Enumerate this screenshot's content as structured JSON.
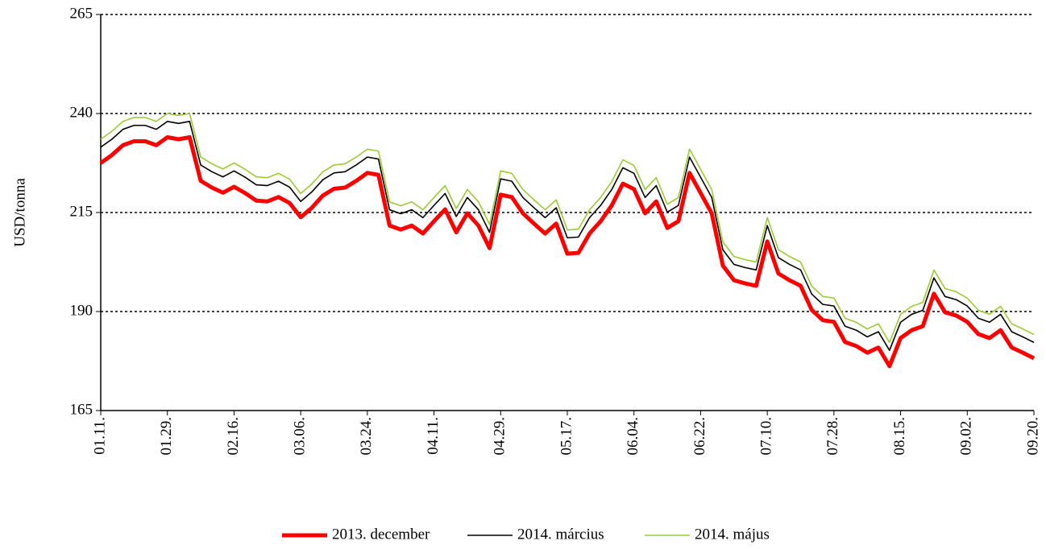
{
  "chart_data": {
    "type": "line",
    "y_label": "USD/tonna",
    "categories": [
      "01.11.",
      null,
      null,
      null,
      null,
      null,
      "01.29.",
      null,
      null,
      null,
      null,
      null,
      "02.16.",
      null,
      null,
      null,
      null,
      null,
      "03.06.",
      null,
      null,
      null,
      null,
      null,
      "03.24.",
      null,
      null,
      null,
      null,
      null,
      "04.11.",
      null,
      null,
      null,
      null,
      null,
      "04.29.",
      null,
      null,
      null,
      null,
      null,
      "05.17.",
      null,
      null,
      null,
      null,
      null,
      "06.04.",
      null,
      null,
      null,
      null,
      null,
      "06.22.",
      null,
      null,
      null,
      null,
      null,
      "07.10.",
      null,
      null,
      null,
      null,
      null,
      "07.28.",
      null,
      null,
      null,
      null,
      null,
      "08.15.",
      null,
      null,
      null,
      null,
      null,
      "09.02.",
      null,
      null,
      null,
      null,
      null,
      "09.20."
    ],
    "series": [
      {
        "name": "2013. december",
        "color": "#ff0000",
        "width": 5,
        "values": [
          227.5,
          229.5,
          232,
          233,
          233,
          232,
          234,
          233.5,
          234,
          223,
          221.3,
          220,
          221.5,
          219.9,
          218,
          217.8,
          218.9,
          217.4,
          213.8,
          216.2,
          219.3,
          221,
          221.3,
          223,
          225,
          224.5,
          211.7,
          210.7,
          211.7,
          209.7,
          212.8,
          215.8,
          210,
          214.8,
          211.7,
          206,
          219.5,
          218.9,
          214.8,
          212.2,
          209.7,
          212.2,
          204.6,
          204.8,
          209.7,
          212.8,
          216.8,
          222.3,
          220.9,
          214.8,
          217.8,
          211.1,
          212.8,
          225,
          219.9,
          214.8,
          201.6,
          197.9,
          197.1,
          196.5,
          207.7,
          199.6,
          197.9,
          196.5,
          190.4,
          187.8,
          187.4,
          182.3,
          181.3,
          179.6,
          180.9,
          176.2,
          183.3,
          185.3,
          186.3,
          194.5,
          189.8,
          189,
          187.4,
          184.3,
          183.3,
          185.3,
          180.9,
          179.6,
          178.2
        ]
      },
      {
        "name": "2014. március",
        "color": "#000000",
        "width": 1.6,
        "values": [
          231.5,
          233.5,
          236,
          237,
          237,
          236,
          238,
          237.5,
          238,
          227,
          225.3,
          224,
          225.5,
          223.9,
          222,
          221.8,
          222.9,
          221.4,
          217.8,
          220.2,
          223.3,
          225,
          225.3,
          227,
          229,
          228.5,
          215.7,
          214.7,
          215.7,
          213.7,
          216.8,
          219.8,
          214,
          218.8,
          215.7,
          210,
          223.5,
          222.9,
          218.8,
          216.2,
          213.7,
          216.2,
          208.6,
          208.8,
          213.7,
          216.8,
          220.8,
          226.3,
          224.9,
          218.8,
          221.8,
          215.1,
          216.8,
          229,
          223.9,
          218.8,
          205.6,
          201.9,
          201.1,
          200.5,
          211.7,
          203.6,
          201.9,
          200.5,
          194.4,
          191.8,
          191.4,
          186.3,
          185.3,
          183.6,
          184.9,
          180.2,
          187.3,
          189.3,
          190.3,
          198.5,
          193.8,
          193,
          191.4,
          188.3,
          187.3,
          189.3,
          184.9,
          183.6,
          182.2
        ]
      },
      {
        "name": "2014. május",
        "color": "#9acd32",
        "width": 1.6,
        "values": [
          233.5,
          235.5,
          238,
          239,
          239,
          238,
          240,
          239.5,
          240,
          229,
          227.3,
          226,
          227.5,
          225.9,
          224,
          223.8,
          224.9,
          223.4,
          219.8,
          222.2,
          225.3,
          227,
          227.3,
          229,
          231,
          230.5,
          217.7,
          216.7,
          217.7,
          215.7,
          218.8,
          221.8,
          216,
          220.8,
          217.7,
          212,
          225.5,
          224.9,
          220.8,
          218.2,
          215.7,
          218.2,
          210.6,
          210.8,
          215.7,
          218.8,
          222.8,
          228.3,
          226.9,
          220.8,
          223.8,
          217.1,
          218.8,
          231,
          225.9,
          220.8,
          207.6,
          203.9,
          203.1,
          202.5,
          213.7,
          205.6,
          203.9,
          202.5,
          196.4,
          193.8,
          193.4,
          188.3,
          187.3,
          185.6,
          186.9,
          182.2,
          189.3,
          191.3,
          192.3,
          200.5,
          195.8,
          195,
          193.4,
          190.3,
          189.3,
          191.3,
          186.9,
          185.6,
          184.2
        ]
      }
    ],
    "ylim": [
      165,
      265
    ],
    "yticks": [
      165,
      190,
      215,
      240,
      265
    ],
    "grid": true,
    "legend": "bottom"
  }
}
